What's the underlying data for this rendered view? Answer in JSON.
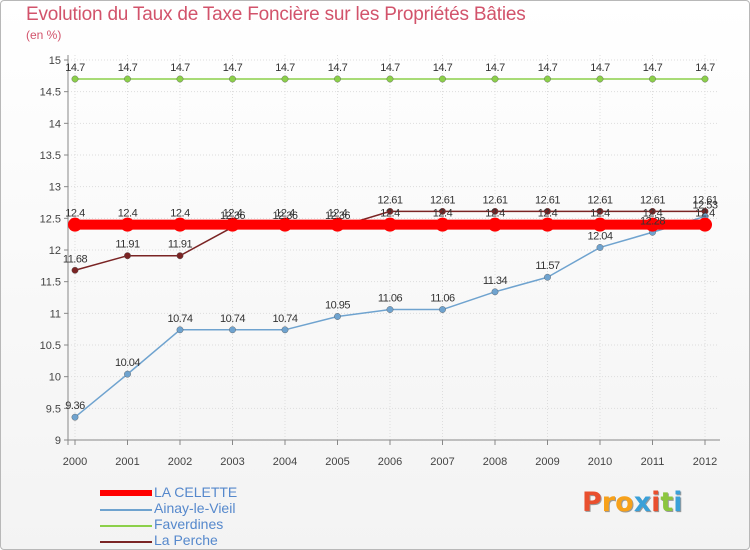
{
  "title": "Evolution du Taux de Taxe Foncière sur les Propriétés Bâties",
  "unit": "(en %)",
  "brand": {
    "text": "Proxiti",
    "letter_colors": [
      "#e94f2e",
      "#f7a11a",
      "#f7a11a",
      "#3aa0d8",
      "#e94f2e",
      "#8cc63f",
      "#3aa0d8"
    ]
  },
  "chart_data": {
    "type": "line",
    "x": [
      "2000",
      "2001",
      "2002",
      "2003",
      "2004",
      "2005",
      "2006",
      "2007",
      "2008",
      "2009",
      "2010",
      "2011",
      "2012"
    ],
    "ylim": [
      9,
      15
    ],
    "yticks": [
      "9",
      "9.5",
      "10",
      "10.5",
      "11",
      "11.5",
      "12",
      "12.5",
      "13",
      "13.5",
      "14",
      "14.5",
      "15"
    ],
    "ytick_values": [
      9,
      9.5,
      10,
      10.5,
      11,
      11.5,
      12,
      12.5,
      13,
      13.5,
      14,
      14.5,
      15
    ],
    "grid": true,
    "series": [
      {
        "name": "Faverdines",
        "color": "#8cd04a",
        "values": [
          14.7,
          14.7,
          14.7,
          14.7,
          14.7,
          14.7,
          14.7,
          14.7,
          14.7,
          14.7,
          14.7,
          14.7,
          14.7
        ],
        "labels": [
          "14.7",
          "14.7",
          "14.7",
          "14.7",
          "14.7",
          "14.7",
          "14.7",
          "14.7",
          "14.7",
          "14.7",
          "14.7",
          "14.7",
          "14.7"
        ]
      },
      {
        "name": "La Perche",
        "color": "#7a2424",
        "values": [
          11.68,
          11.91,
          11.91,
          12.36,
          12.36,
          12.36,
          12.61,
          12.61,
          12.61,
          12.61,
          12.61,
          12.61,
          12.61
        ],
        "labels": [
          "11.68",
          "11.91",
          "11.91",
          "12.36",
          "12.36",
          "12.36",
          "12.61",
          "12.61",
          "12.61",
          "12.61",
          "12.61",
          "12.61",
          "12.61"
        ]
      },
      {
        "name": "Ainay-le-Vieil",
        "color": "#6fa3cf",
        "values": [
          9.36,
          10.04,
          10.74,
          10.74,
          10.74,
          10.95,
          11.06,
          11.06,
          11.34,
          11.57,
          12.04,
          12.28,
          12.53
        ],
        "labels": [
          "9.36",
          "10.04",
          "10.74",
          "10.74",
          "10.74",
          "10.95",
          "11.06",
          "11.06",
          "11.34",
          "11.57",
          "12.04",
          "12.28",
          "12.53"
        ]
      },
      {
        "name": "LA CELETTE",
        "color": "#ff0000",
        "values": [
          12.4,
          12.4,
          12.4,
          12.4,
          12.4,
          12.4,
          12.4,
          12.4,
          12.4,
          12.4,
          12.4,
          12.4,
          12.4
        ],
        "labels": [
          "12.4",
          "12.4",
          "12.4",
          "12.4",
          "12.4",
          "12.4",
          "12.4",
          "12.4",
          "12.4",
          "12.4",
          "12.4",
          "12.4",
          "12.4"
        ]
      }
    ],
    "legend": [
      {
        "name": "LA CELETTE",
        "color": "#ff0000"
      },
      {
        "name": "Ainay-le-Vieil",
        "color": "#6fa3cf"
      },
      {
        "name": "Faverdines",
        "color": "#8cd04a"
      },
      {
        "name": "La Perche",
        "color": "#7a2424"
      }
    ],
    "legend_position": "bottom-left"
  }
}
